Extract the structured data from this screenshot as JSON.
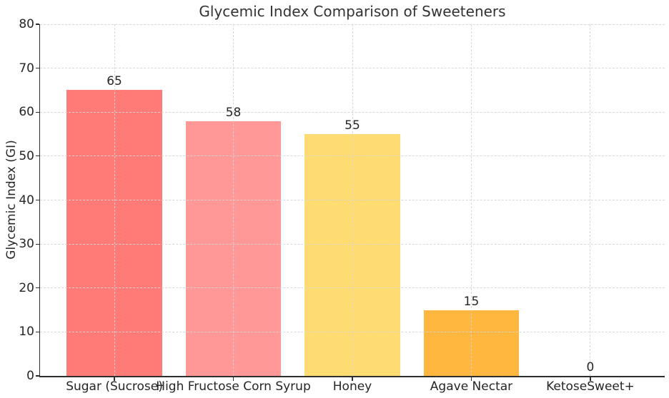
{
  "chart_data": {
    "type": "bar",
    "title": "Glycemic Index Comparison of Sweeteners",
    "xlabel": "",
    "ylabel": "Glycemic Index (GI)",
    "categories": [
      "Sugar (Sucrose)",
      "High Fructose Corn Syrup",
      "Honey",
      "Agave Nectar",
      "KetoseSweet+"
    ],
    "values": [
      65,
      58,
      55,
      15,
      0
    ],
    "value_labels": [
      "65",
      "58",
      "55",
      "15",
      "0"
    ],
    "bar_colors": [
      "#FF7B78",
      "#FF9896",
      "#FFDC71",
      "#FFB740",
      "#FFB740"
    ],
    "ylim": [
      0,
      80
    ],
    "yticks": [
      0,
      10,
      20,
      30,
      40,
      50,
      60,
      70,
      80
    ],
    "grid": {
      "shown": true,
      "style": "dashed",
      "color": "#d5d5d5",
      "axes": "both",
      "drawn_above_bars": true
    },
    "legend": {
      "shown": false
    },
    "background_color": "#ffffff",
    "spine_color": "#2e2e2e"
  }
}
